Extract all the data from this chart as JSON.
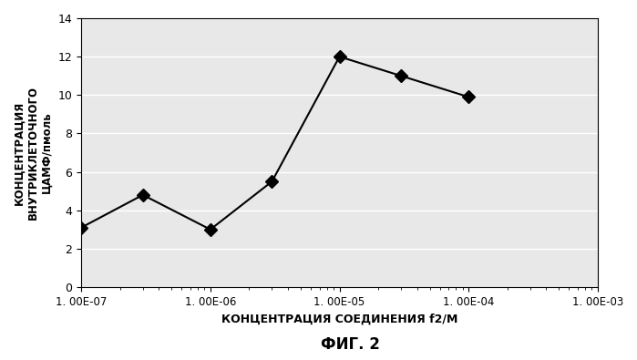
{
  "x_values": [
    1e-07,
    3e-07,
    1e-06,
    3e-06,
    1e-05,
    3e-05,
    0.0001
  ],
  "y_values": [
    3.1,
    4.8,
    3.0,
    5.5,
    12.0,
    11.0,
    9.9
  ],
  "xlim_log": [
    -7,
    -3
  ],
  "ylim": [
    0,
    14
  ],
  "yticks": [
    0,
    2,
    4,
    6,
    8,
    10,
    12,
    14
  ],
  "xtick_labels": [
    "1. 00E-07",
    "1. 00E-06",
    "1. 00E-05",
    "1. 00E-04",
    "1. 00E-03"
  ],
  "xtick_values": [
    1e-07,
    1e-06,
    1e-05,
    0.0001,
    0.001
  ],
  "xlabel": "КОНЦЕНТРАЦИЯ СОЕДИНЕНИЯ f2/М",
  "ylabel_lines": [
    "КОНЦЕНТРАЦИЯ",
    "ВНУТРИКЛЕТОЧНОГО",
    "ЦАМФ/пмоль"
  ],
  "figure_label": "ФИГ. 2",
  "line_color": "#000000",
  "marker": "D",
  "marker_size": 7,
  "marker_color": "#000000",
  "bg_color": "#ffffff",
  "plot_bg_color": "#e8e8e8",
  "grid_color": "#ffffff",
  "line_width": 1.5
}
